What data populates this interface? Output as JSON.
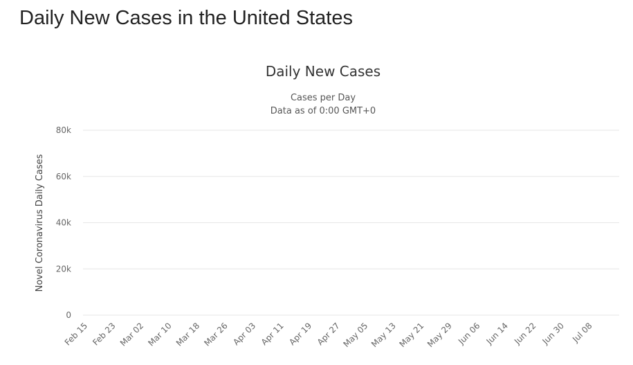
{
  "page": {
    "heading": "Daily New Cases in the United States"
  },
  "chart_data": {
    "type": "bar",
    "title": "Daily New Cases",
    "subtitle_lines": [
      "Cases per Day",
      "Data as of 0:00 GMT+0"
    ],
    "ylabel": "Novel Coronavirus Daily Cases",
    "ylim": [
      0,
      80000
    ],
    "y_ticks": [
      0,
      20000,
      40000,
      60000,
      80000
    ],
    "y_tick_labels": [
      "0",
      "20k",
      "40k",
      "60k",
      "80k"
    ],
    "x_tick_labels": [
      "Feb 15",
      "Feb 23",
      "Mar 02",
      "Mar 10",
      "Mar 18",
      "Mar 26",
      "Apr 03",
      "Apr 11",
      "Apr 19",
      "Apr 27",
      "May 05",
      "May 13",
      "May 21",
      "May 29",
      "Jun 06",
      "Jun 14",
      "Jun 22",
      "Jun 30",
      "Jul 08"
    ],
    "x_tick_interval_days": 8,
    "first_date": "Feb 15",
    "grid": true,
    "colors": {
      "bars": "#949494",
      "area": "#e0a9a9",
      "grid": "#e6e6e6"
    },
    "series": [
      {
        "type": "bar",
        "values": [
          0,
          0,
          0,
          0,
          0,
          0,
          0,
          0,
          0,
          0,
          0,
          0,
          0,
          0,
          0,
          0,
          0,
          0,
          0,
          0,
          0,
          0,
          0,
          0,
          0,
          0,
          0,
          0,
          0,
          0,
          0,
          0,
          0,
          0,
          0,
          0,
          0,
          0,
          0,
          0,
          0,
          0,
          0,
          0,
          0,
          0,
          0,
          0,
          0,
          0,
          0,
          0,
          0,
          0,
          0,
          0,
          0,
          0,
          0,
          0,
          0,
          0,
          0,
          0,
          0,
          0,
          0,
          0,
          0,
          0,
          0,
          0,
          0,
          0,
          0,
          0,
          0,
          0,
          0,
          0,
          0,
          0,
          0,
          0,
          0,
          0,
          0,
          0,
          0,
          0,
          0,
          0,
          0,
          0,
          0,
          0,
          0,
          0,
          0,
          0,
          0,
          0,
          0,
          0,
          0,
          0,
          0,
          0,
          0,
          0,
          0,
          0,
          0,
          0,
          0,
          0,
          0,
          0,
          0,
          0,
          0,
          0,
          0,
          0,
          0,
          0,
          0,
          0,
          0,
          0,
          0,
          0,
          0,
          0,
          0,
          0,
          0,
          0,
          0,
          0,
          0,
          0,
          0,
          0,
          0,
          0,
          0,
          0,
          0,
          0,
          0,
          0,
          0
        ]
      },
      {
        "type": "area",
        "values": [
          0,
          0,
          0,
          0,
          0,
          0,
          0,
          0,
          0,
          0,
          0,
          0,
          0,
          0,
          0,
          0,
          0,
          0,
          0,
          0,
          0,
          0,
          0,
          0,
          0,
          0,
          0,
          0,
          0,
          0,
          0,
          0,
          0,
          0,
          0,
          0,
          0,
          0,
          0,
          0,
          0,
          0,
          0,
          0,
          0,
          0,
          0,
          0,
          0,
          0,
          0,
          0,
          0,
          0,
          0,
          0,
          0,
          0,
          0,
          0,
          0,
          0,
          0,
          0,
          0,
          0,
          0,
          0,
          0,
          0,
          0,
          0,
          0,
          0,
          0,
          0,
          0,
          0,
          0,
          0,
          0,
          0,
          0,
          0,
          0,
          0,
          0,
          0,
          0,
          0,
          0,
          0,
          0,
          0,
          0,
          0,
          0,
          0,
          0,
          0,
          0,
          0,
          0,
          0,
          0,
          0,
          0,
          0,
          0,
          0,
          0,
          0,
          0,
          0,
          0,
          0,
          0,
          0,
          0,
          0,
          0,
          0,
          0,
          0,
          0,
          0,
          0,
          0,
          0,
          0,
          0,
          0,
          0,
          0,
          0,
          0,
          0,
          0,
          0,
          0,
          0,
          0,
          0,
          0,
          0,
          0,
          0,
          0,
          0,
          0,
          0,
          0,
          0
        ]
      }
    ]
  }
}
